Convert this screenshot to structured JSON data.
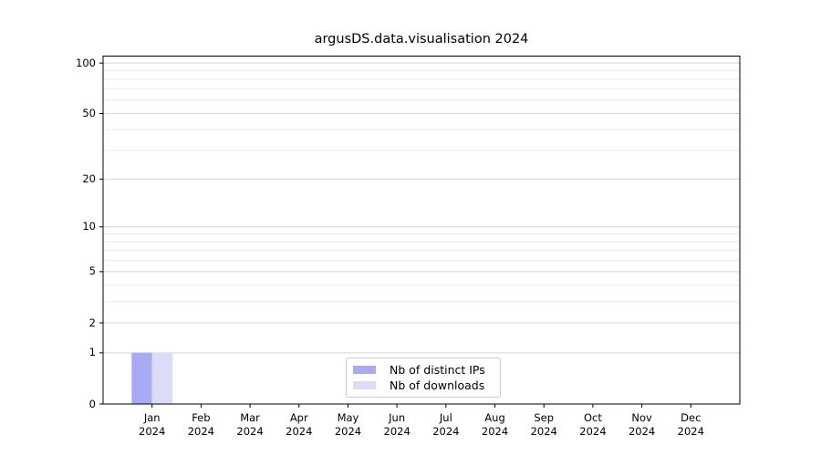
{
  "chart_data": {
    "type": "bar",
    "title": "argusDS.data.visualisation 2024",
    "categories": [
      "Jan",
      "Feb",
      "Mar",
      "Apr",
      "May",
      "Jun",
      "Jul",
      "Aug",
      "Sep",
      "Oct",
      "Nov",
      "Dec"
    ],
    "year_label": "2024",
    "series": [
      {
        "name": "Nb of distinct IPs",
        "color": "#a9a9f6",
        "values": [
          1,
          0,
          0,
          0,
          0,
          0,
          0,
          0,
          0,
          0,
          0,
          0
        ]
      },
      {
        "name": "Nb of downloads",
        "color": "#dcdcf9",
        "values": [
          1,
          0,
          0,
          0,
          0,
          0,
          0,
          0,
          0,
          0,
          0,
          0
        ]
      }
    ],
    "xlabel": "",
    "ylabel": "",
    "yscale": "log1p",
    "yticks": [
      0,
      1,
      2,
      5,
      10,
      20,
      50,
      100
    ],
    "yticks_minor": [
      3,
      4,
      6,
      7,
      8,
      9,
      30,
      40,
      60,
      70,
      80,
      90
    ],
    "ylim": [
      0,
      110
    ],
    "grid": true,
    "legend": {
      "position": "lower center",
      "border_color": "#cccccc"
    },
    "colors": {
      "spine": "#000000",
      "grid_major": "#d4d4d4",
      "grid_minor": "#ebebeb"
    }
  }
}
